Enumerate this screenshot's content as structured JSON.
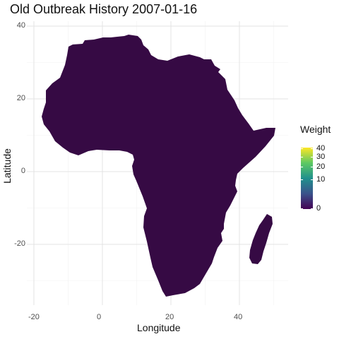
{
  "chart_data": {
    "type": "map",
    "title": "Old Outbreak History 2007-01-16",
    "xlabel": "Longitude",
    "ylabel": "Latitude",
    "xlim": [
      -20,
      52
    ],
    "ylim": [
      -36,
      38
    ],
    "x_ticks": [
      "-20",
      "0",
      "20",
      "40"
    ],
    "y_ticks": [
      "40",
      "20",
      "0",
      "-20"
    ],
    "grid": true,
    "region": "Africa",
    "fill_color": "#360a44",
    "legend": {
      "title": "Weight",
      "position": "right",
      "scale": "viridis",
      "colors": [
        "#440154",
        "#3b528b",
        "#21908d",
        "#5dc963",
        "#fde725"
      ],
      "tick_labels": [
        "40",
        "30",
        "20",
        "10",
        "0"
      ],
      "tick_values": [
        40,
        30,
        20,
        10,
        0
      ]
    }
  }
}
